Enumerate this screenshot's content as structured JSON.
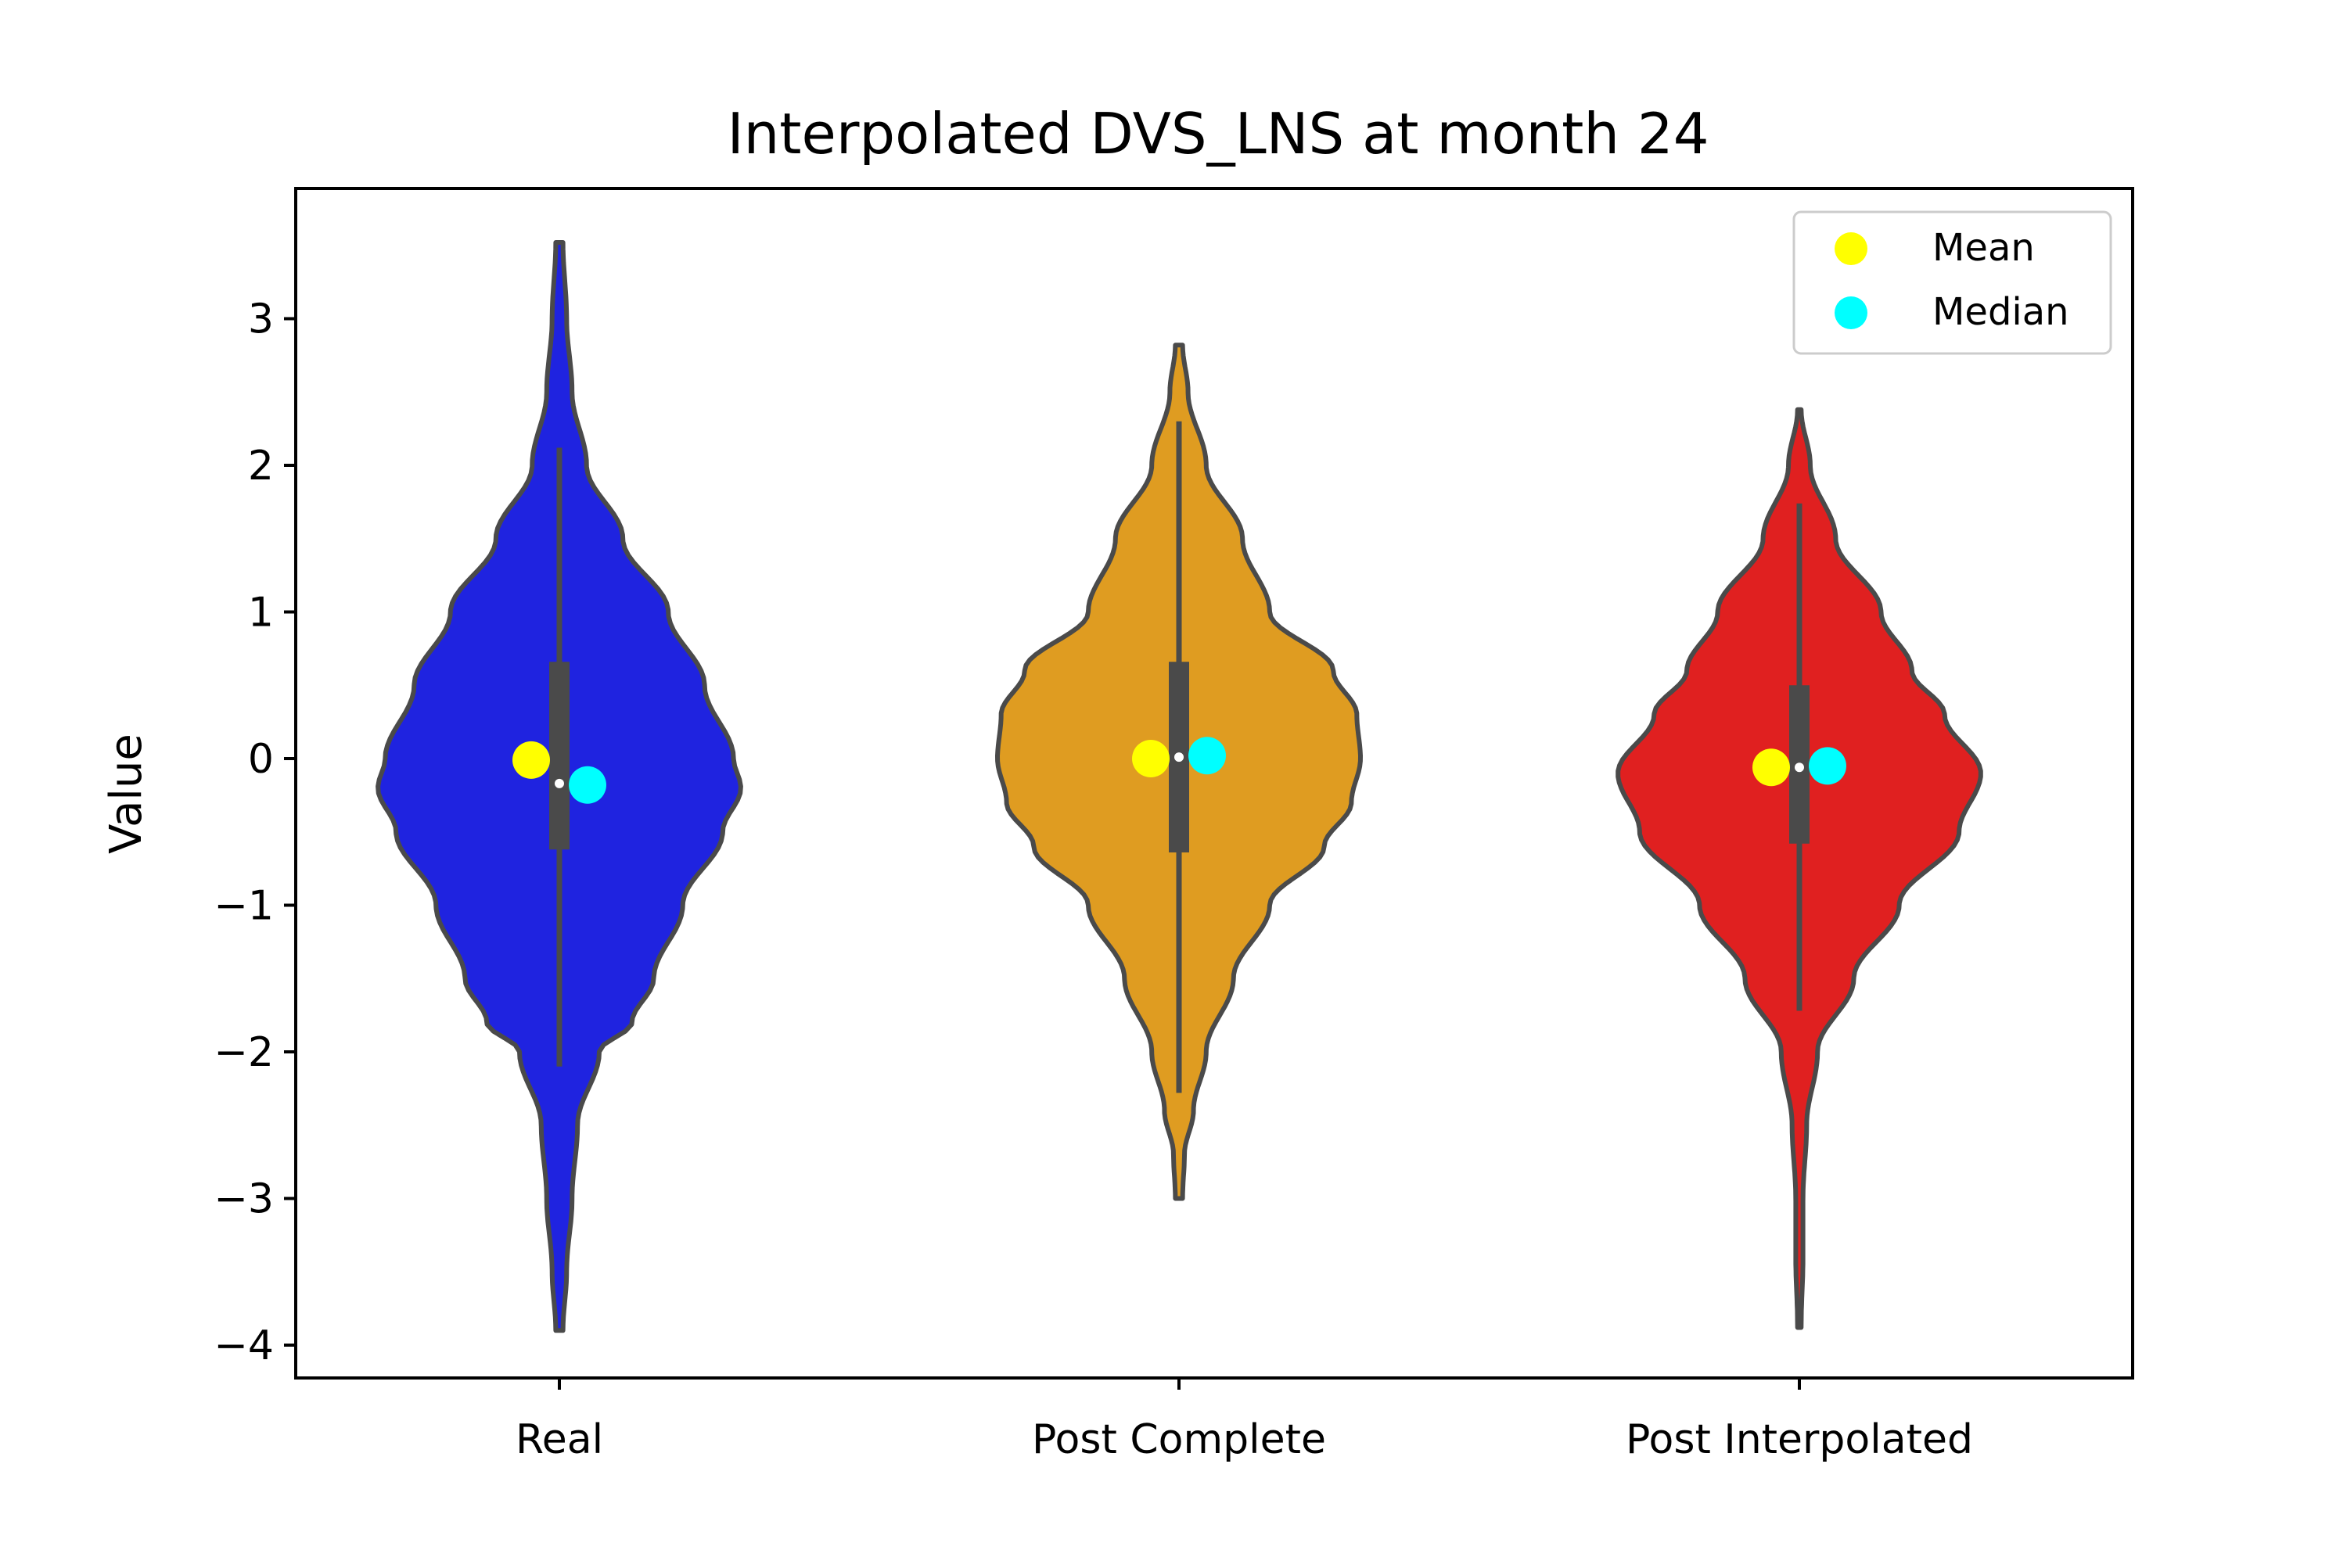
{
  "chart_data": {
    "type": "violin",
    "title": "Interpolated DVS_LNS at month 24",
    "xlabel": "",
    "ylabel": "Value",
    "ylim": [
      -4.25,
      3.85
    ],
    "yticks": [
      -4,
      -3,
      -2,
      -1,
      0,
      1,
      2,
      3
    ],
    "ytick_labels": [
      "−4",
      "−3",
      "−2",
      "−1",
      "0",
      "1",
      "2",
      "3"
    ],
    "categories": [
      "Real",
      "Post Complete",
      "Post Interpolated"
    ],
    "grid": false,
    "legend": {
      "placement": "top-right",
      "entries": [
        {
          "label": "Mean",
          "color": "#ffff00"
        },
        {
          "label": "Median",
          "color": "#00ffff"
        }
      ]
    },
    "colors": {
      "violin_outline": "#4a4a4a",
      "box": "#4a4a4a",
      "median_dot": "#ffffff",
      "axes": "#000000"
    },
    "series": [
      {
        "category": "Real",
        "color": "#1f23e0",
        "min": -3.9,
        "max": 3.52,
        "whisker_low": -2.1,
        "whisker_high": 2.12,
        "q1": -0.62,
        "median": -0.17,
        "q3": 0.66,
        "mean": -0.01,
        "median_marker": -0.18,
        "density_profile": [
          [
            -3.9,
            0.02
          ],
          [
            -3.5,
            0.04
          ],
          [
            -3.0,
            0.07
          ],
          [
            -2.5,
            0.1
          ],
          [
            -2.0,
            0.22
          ],
          [
            -1.8,
            0.4
          ],
          [
            -1.5,
            0.52
          ],
          [
            -1.0,
            0.68
          ],
          [
            -0.5,
            0.9
          ],
          [
            -0.2,
            1.0
          ],
          [
            0.0,
            0.96
          ],
          [
            0.5,
            0.8
          ],
          [
            1.0,
            0.6
          ],
          [
            1.5,
            0.35
          ],
          [
            2.0,
            0.15
          ],
          [
            2.5,
            0.07
          ],
          [
            3.0,
            0.04
          ],
          [
            3.52,
            0.02
          ]
        ]
      },
      {
        "category": "Post Complete",
        "color": "#df9c21",
        "min": -3.0,
        "max": 2.82,
        "whisker_low": -2.28,
        "whisker_high": 2.3,
        "q1": -0.64,
        "median": 0.01,
        "q3": 0.66,
        "mean": 0.0,
        "median_marker": 0.02,
        "density_profile": [
          [
            -3.0,
            0.02
          ],
          [
            -2.7,
            0.03
          ],
          [
            -2.4,
            0.08
          ],
          [
            -2.0,
            0.15
          ],
          [
            -1.5,
            0.3
          ],
          [
            -1.0,
            0.5
          ],
          [
            -0.6,
            0.8
          ],
          [
            -0.3,
            0.95
          ],
          [
            0.0,
            1.0
          ],
          [
            0.3,
            0.98
          ],
          [
            0.6,
            0.85
          ],
          [
            1.0,
            0.5
          ],
          [
            1.5,
            0.35
          ],
          [
            2.0,
            0.15
          ],
          [
            2.5,
            0.05
          ],
          [
            2.82,
            0.02
          ]
        ]
      },
      {
        "category": "Post Interpolated",
        "color": "#e02020",
        "min": -3.88,
        "max": 2.38,
        "whisker_low": -1.72,
        "whisker_high": 1.74,
        "q1": -0.58,
        "median": -0.06,
        "q3": 0.5,
        "mean": -0.06,
        "median_marker": -0.05,
        "density_profile": [
          [
            -3.88,
            0.01
          ],
          [
            -3.4,
            0.02
          ],
          [
            -3.0,
            0.02
          ],
          [
            -2.5,
            0.04
          ],
          [
            -2.0,
            0.1
          ],
          [
            -1.5,
            0.3
          ],
          [
            -1.0,
            0.55
          ],
          [
            -0.5,
            0.88
          ],
          [
            -0.1,
            1.0
          ],
          [
            0.3,
            0.8
          ],
          [
            0.6,
            0.62
          ],
          [
            1.0,
            0.45
          ],
          [
            1.5,
            0.2
          ],
          [
            2.0,
            0.06
          ],
          [
            2.38,
            0.01
          ]
        ]
      }
    ]
  }
}
